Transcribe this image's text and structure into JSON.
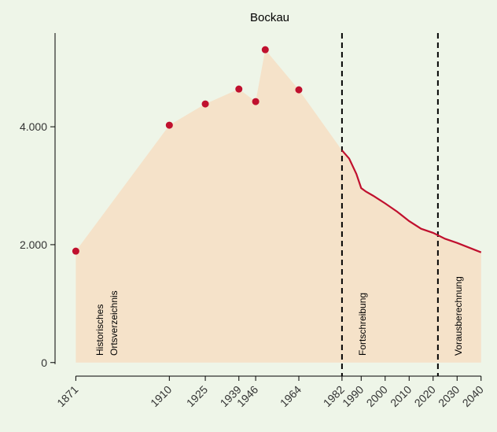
{
  "chart_data": {
    "type": "area",
    "title": "Bockau",
    "series": [
      {
        "x": [
          1871,
          1910,
          1925,
          1939,
          1946,
          1950,
          1964
        ],
        "values": [
          1890,
          4027,
          4387,
          4640,
          4427,
          5307,
          4627
        ],
        "color": "#c0102e"
      },
      {
        "x": [
          1982,
          1985,
          1988,
          1990,
          1992,
          1995,
          2000,
          2005,
          2010,
          2015,
          2020,
          2025,
          2030,
          2035,
          2040
        ],
        "values": [
          3600,
          3460,
          3200,
          2960,
          2900,
          2830,
          2700,
          2560,
          2400,
          2270,
          2200,
          2100,
          2030,
          1950,
          1870
        ],
        "color": "#c0102e"
      }
    ],
    "area_color": "#f5e2c9",
    "vlines": [
      1982,
      2022
    ],
    "annotations": [
      [
        "Historisches",
        "Ortsverzeichnis"
      ],
      [
        "Fortschreibung"
      ],
      [
        "Vorausberechnung"
      ]
    ],
    "xlim": [
      1863,
      2045
    ],
    "ylim": [
      -150,
      5750
    ],
    "xticks": [
      1871,
      1910,
      1925,
      1939,
      1946,
      1964,
      1982,
      1990,
      2000,
      2010,
      2020,
      2030,
      2040
    ],
    "yticks": [
      0,
      {
        "value": 2000,
        "label": "2.000"
      },
      {
        "value": 4000,
        "label": "4.000"
      }
    ]
  }
}
